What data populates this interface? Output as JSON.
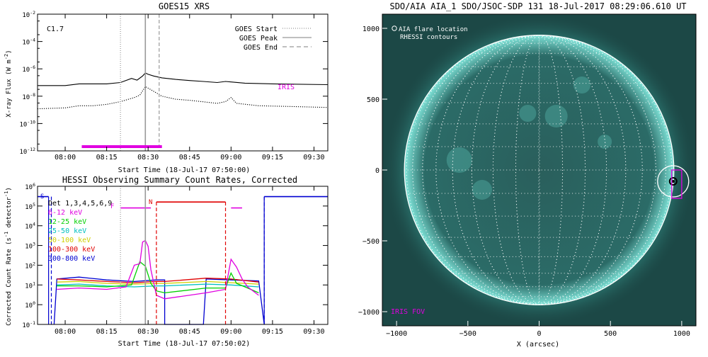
{
  "chart_data": [
    {
      "type": "line",
      "title": "GOES15 XRS",
      "xlabel": "Start Time (18-Jul-17 07:50:00)",
      "ylabel": "X-ray Flux (W m^-2)",
      "ylog": true,
      "xlim": [
        "07:50",
        "09:35"
      ],
      "ylim": [
        1e-12,
        0.01
      ],
      "xticks": [
        "08:00",
        "08:15",
        "08:30",
        "08:45",
        "09:00",
        "09:15",
        "09:30"
      ],
      "yticks": [
        {
          "value": 0.01,
          "label": "10^-2"
        },
        {
          "value": 0.0001,
          "label": "10^-4"
        },
        {
          "value": 1e-06,
          "label": "10^-6"
        },
        {
          "value": 1e-08,
          "label": "10^-8"
        },
        {
          "value": 1e-10,
          "label": "10^-10"
        },
        {
          "value": 1e-12,
          "label": "10^-12"
        }
      ],
      "class_label": "C1.7",
      "legend_position": "top-right",
      "legend": [
        {
          "label": "GOES Start",
          "style": "dotted"
        },
        {
          "label": "GOES Peak",
          "style": "solid"
        },
        {
          "label": "GOES End",
          "style": "dashed"
        }
      ],
      "markers": {
        "start": "08:20",
        "peak": "08:29",
        "end": "08:34"
      },
      "iris_label": "IRIS",
      "iris_interval": [
        "08:06",
        "08:35"
      ],
      "series": [
        {
          "name": "long",
          "color": "#000000",
          "points": [
            [
              "07:50",
              6e-08
            ],
            [
              "08:00",
              6e-08
            ],
            [
              "08:05",
              8e-08
            ],
            [
              "08:10",
              8e-08
            ],
            [
              "08:15",
              8e-08
            ],
            [
              "08:20",
              1e-07
            ],
            [
              "08:24",
              2e-07
            ],
            [
              "08:26",
              1.5e-07
            ],
            [
              "08:28",
              3e-07
            ],
            [
              "08:29",
              5e-07
            ],
            [
              "08:30",
              4e-07
            ],
            [
              "08:32",
              3e-07
            ],
            [
              "08:35",
              2.2e-07
            ],
            [
              "08:40",
              1.7e-07
            ],
            [
              "08:45",
              1.4e-07
            ],
            [
              "08:50",
              1.2e-07
            ],
            [
              "08:55",
              1e-07
            ],
            [
              "08:58",
              1.2e-07
            ],
            [
              "09:00",
              1.1e-07
            ],
            [
              "09:05",
              9e-08
            ],
            [
              "09:15",
              8e-08
            ],
            [
              "09:35",
              7e-08
            ]
          ]
        },
        {
          "name": "short",
          "color": "#000000",
          "points": [
            [
              "07:50",
              1.2e-09
            ],
            [
              "08:00",
              1.4e-09
            ],
            [
              "08:05",
              2e-09
            ],
            [
              "08:10",
              2e-09
            ],
            [
              "08:15",
              2.5e-09
            ],
            [
              "08:20",
              4e-09
            ],
            [
              "08:25",
              8e-09
            ],
            [
              "08:27",
              1.2e-08
            ],
            [
              "08:29",
              5e-08
            ],
            [
              "08:31",
              3e-08
            ],
            [
              "08:35",
              1e-08
            ],
            [
              "08:40",
              6e-09
            ],
            [
              "08:45",
              5e-09
            ],
            [
              "08:55",
              3e-09
            ],
            [
              "08:58",
              4e-09
            ],
            [
              "09:00",
              8e-09
            ],
            [
              "09:02",
              3e-09
            ],
            [
              "09:10",
              2e-09
            ],
            [
              "09:20",
              1.8e-09
            ],
            [
              "09:35",
              1.5e-09
            ]
          ]
        }
      ]
    },
    {
      "type": "line",
      "title": "HESSI Observing Summary Count Rates, Corrected",
      "xlabel": "Start Time (18-Jul-17 07:50:02)",
      "ylabel": "Corrected Count Rate (s^-1 detector^-1)",
      "ylog": true,
      "xlim": [
        "07:50",
        "09:35"
      ],
      "ylim": [
        0.1,
        1000000.0
      ],
      "xticks": [
        "08:00",
        "08:15",
        "08:30",
        "08:45",
        "09:00",
        "09:15",
        "09:30"
      ],
      "yticks": [
        {
          "value": 1000000.0,
          "label": "10^6"
        },
        {
          "value": 100000.0,
          "label": "10^5"
        },
        {
          "value": 10000.0,
          "label": "10^4"
        },
        {
          "value": 1000.0,
          "label": "10^3"
        },
        {
          "value": 100.0,
          "label": "10^2"
        },
        {
          "value": 10.0,
          "label": "10^1"
        },
        {
          "value": 1,
          "label": "10^0"
        },
        {
          "value": 0.1,
          "label": "10^-1"
        }
      ],
      "detectors": "Det 1,3,4,5,6,9",
      "legend": [
        {
          "label": "6-12 keV",
          "color": "#e000e0"
        },
        {
          "label": "12-25 keV",
          "color": "#00d000"
        },
        {
          "label": "25-50 keV",
          "color": "#00c0c0"
        },
        {
          "label": "50-100 keV",
          "color": "#d0d000"
        },
        {
          "label": "100-300 keV",
          "color": "#e00000"
        },
        {
          "label": "300-800 keV",
          "color": "#0000d0"
        }
      ],
      "flags": [
        {
          "label": "S",
          "color": "#0000d0"
        },
        {
          "label": "F",
          "color": "#e000e0"
        },
        {
          "label": "N",
          "color": "#e00000"
        }
      ],
      "markers": {
        "start": "08:20",
        "peak": "08:29",
        "end": "08:34",
        "red_dashed": [
          "08:33",
          "08:58"
        ],
        "blue_dashed": [
          "07:55",
          "09:12"
        ]
      },
      "night_bars": [
        {
          "color": "#0000d0",
          "level": 300000.0,
          "from": "07:50",
          "to": "07:54"
        },
        {
          "color": "#0000d0",
          "level": 300000.0,
          "from": "09:12",
          "to": "09:35"
        },
        {
          "color": "#e00000",
          "level": 160000.0,
          "from": "08:33",
          "to": "08:58"
        },
        {
          "color": "#e000e0",
          "level": 80000.0,
          "from": "08:20",
          "to": "08:31"
        },
        {
          "color": "#e000e0",
          "level": 80000.0,
          "from": "09:00",
          "to": "09:04"
        }
      ],
      "series": [
        {
          "name": "300-800 keV",
          "color": "#0000d0",
          "points": [
            [
              "07:56",
              0.1
            ],
            [
              "07:57",
              20
            ],
            [
              "08:05",
              25
            ],
            [
              "08:15",
              18
            ],
            [
              "08:25",
              15
            ],
            [
              "08:33",
              18
            ],
            [
              "08:36",
              18
            ],
            [
              "08:36",
              0.1
            ],
            [
              "08:50",
              0.1
            ],
            [
              "08:51",
              20
            ],
            [
              "09:00",
              18
            ],
            [
              "09:10",
              16
            ],
            [
              "09:12",
              0.1
            ]
          ]
        },
        {
          "name": "100-300 keV",
          "color": "#e00000",
          "points": [
            [
              "07:57",
              20
            ],
            [
              "08:05",
              18
            ],
            [
              "08:15",
              15
            ],
            [
              "08:25",
              13
            ],
            [
              "08:33",
              15
            ],
            [
              "08:36",
              15
            ],
            [
              "08:51",
              22
            ],
            [
              "09:00",
              20
            ],
            [
              "09:10",
              14
            ]
          ]
        },
        {
          "name": "50-100 keV",
          "color": "#d0d000",
          "points": [
            [
              "07:57",
              14
            ],
            [
              "08:05",
              15
            ],
            [
              "08:15",
              12
            ],
            [
              "08:25",
              11
            ],
            [
              "08:33",
              12
            ],
            [
              "08:36",
              12
            ],
            [
              "08:51",
              15
            ],
            [
              "09:00",
              13
            ],
            [
              "09:10",
              11
            ]
          ]
        },
        {
          "name": "25-50 keV",
          "color": "#00c0c0",
          "points": [
            [
              "07:57",
              10
            ],
            [
              "08:05",
              11
            ],
            [
              "08:15",
              9
            ],
            [
              "08:25",
              8
            ],
            [
              "08:33",
              9
            ],
            [
              "08:36",
              9
            ],
            [
              "08:51",
              11
            ],
            [
              "09:00",
              10
            ],
            [
              "09:10",
              8
            ]
          ]
        },
        {
          "name": "12-25 keV",
          "color": "#00d000",
          "points": [
            [
              "07:57",
              9
            ],
            [
              "08:05",
              9
            ],
            [
              "08:15",
              8
            ],
            [
              "08:24",
              10
            ],
            [
              "08:27",
              150
            ],
            [
              "08:29",
              90
            ],
            [
              "08:31",
              12
            ],
            [
              "08:33",
              5
            ],
            [
              "08:36",
              4
            ],
            [
              "08:51",
              7
            ],
            [
              "08:58",
              7
            ],
            [
              "09:00",
              40
            ],
            [
              "09:02",
              12
            ],
            [
              "09:06",
              7
            ],
            [
              "09:10",
              4
            ]
          ]
        },
        {
          "name": "6-12 keV",
          "color": "#e000e0",
          "points": [
            [
              "07:57",
              6
            ],
            [
              "08:05",
              7
            ],
            [
              "08:15",
              6
            ],
            [
              "08:22",
              8
            ],
            [
              "08:25",
              100
            ],
            [
              "08:27",
              120
            ],
            [
              "08:28",
              1500
            ],
            [
              "08:29",
              1800
            ],
            [
              "08:30",
              900
            ],
            [
              "08:31",
              60
            ],
            [
              "08:33",
              3
            ],
            [
              "08:36",
              2
            ],
            [
              "08:51",
              4
            ],
            [
              "08:58",
              6
            ],
            [
              "09:00",
              200
            ],
            [
              "09:02",
              80
            ],
            [
              "09:04",
              20
            ],
            [
              "09:06",
              8
            ],
            [
              "09:10",
              3
            ]
          ]
        }
      ]
    },
    {
      "type": "scatter",
      "title": "SDO/AIA AIA_1 SDO/JSOC-SDP 131 18-Jul-2017 08:29:06.610 UT",
      "xlabel": "X (arcsec)",
      "ylabel": "",
      "xlim": [
        -1100,
        1100
      ],
      "ylim": [
        -1100,
        1100
      ],
      "xticks": [
        "-1000",
        "-500",
        "0",
        "500",
        "1000"
      ],
      "yticks": [
        "1000",
        "500",
        "0",
        "-500",
        "-1000"
      ],
      "legend_position": "top-left",
      "legend": [
        "AIA flare location",
        "RHESSI contours"
      ],
      "iris_fov_label": "IRIS FOV",
      "solar_radius": 945,
      "grid_spacing_deg": 10,
      "flare_location": [
        940,
        -80
      ],
      "iris_fov": [
        930,
        1000,
        -200,
        0
      ],
      "background_color": "#1c4846",
      "limb_color": "#7fe3d8"
    }
  ]
}
